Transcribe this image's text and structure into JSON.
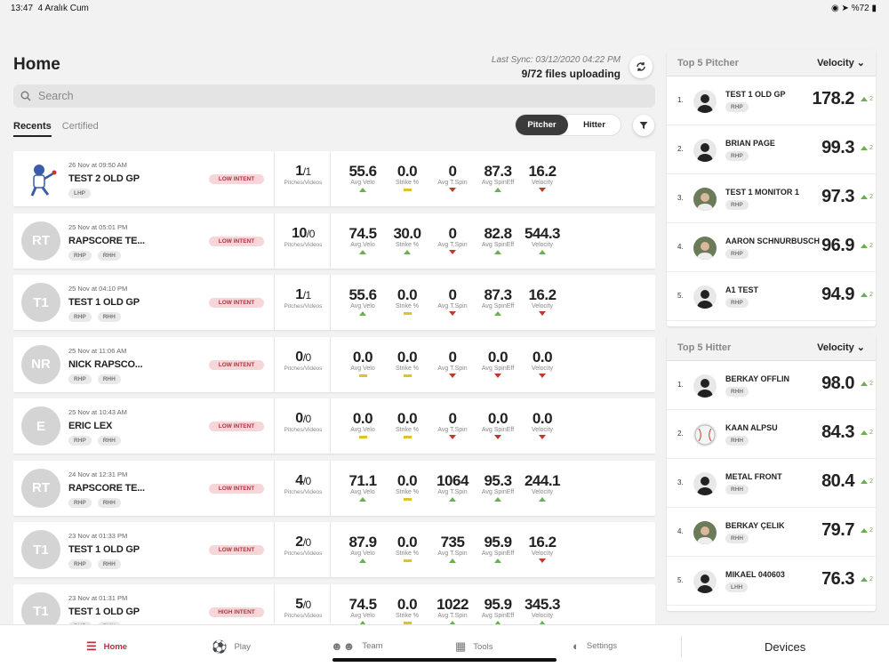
{
  "status": {
    "time": "13:47",
    "date": "4 Aralık Cum",
    "battery": "%72"
  },
  "header": {
    "title": "Home",
    "last_sync": "Last Sync: 03/12/2020 04:22 PM",
    "files": "9/72 files uploading"
  },
  "search": {
    "placeholder": "Search"
  },
  "tabs": [
    "Recents",
    "Certified"
  ],
  "segment": {
    "pitcher": "Pitcher",
    "hitter": "Hitter"
  },
  "metric_labels": [
    "Avg Velo",
    "Strike %",
    "Avg T.Spin",
    "Avg SpinEff",
    "Velocity"
  ],
  "pitches_label": "Pitches/Videos",
  "sessions": [
    {
      "date": "26 Nov at 09:50 AM",
      "name": "TEST 2 OLD GP",
      "initials": "",
      "avatar": "logo",
      "tags": [
        "LHP"
      ],
      "intent": "LOW INTENT",
      "pitches": "1",
      "videos": "/1",
      "metrics": [
        {
          "v": "55.6",
          "t": "up"
        },
        {
          "v": "0.0",
          "t": "flat"
        },
        {
          "v": "0",
          "t": "down"
        },
        {
          "v": "87.3",
          "t": "up"
        },
        {
          "v": "16.2",
          "t": "down"
        }
      ]
    },
    {
      "date": "25 Nov at 05:01 PM",
      "name": "RAPSCORE TE...",
      "initials": "RT",
      "avatar": "initials",
      "tags": [
        "RHP",
        "RHH"
      ],
      "intent": "LOW INTENT",
      "pitches": "10",
      "videos": "/0",
      "metrics": [
        {
          "v": "74.5",
          "t": "up"
        },
        {
          "v": "30.0",
          "t": "up"
        },
        {
          "v": "0",
          "t": "down"
        },
        {
          "v": "82.8",
          "t": "up"
        },
        {
          "v": "544.3",
          "t": "up"
        }
      ]
    },
    {
      "date": "25 Nov at 04:10 PM",
      "name": "TEST 1 OLD GP",
      "initials": "T1",
      "avatar": "initials",
      "tags": [
        "RHP",
        "RHH"
      ],
      "intent": "LOW INTENT",
      "pitches": "1",
      "videos": "/1",
      "metrics": [
        {
          "v": "55.6",
          "t": "up"
        },
        {
          "v": "0.0",
          "t": "flat"
        },
        {
          "v": "0",
          "t": "down"
        },
        {
          "v": "87.3",
          "t": "up"
        },
        {
          "v": "16.2",
          "t": "down"
        }
      ]
    },
    {
      "date": "25 Nov at 11:06 AM",
      "name": "NICK RAPSCO...",
      "initials": "NR",
      "avatar": "initials",
      "tags": [
        "RHP",
        "RHH"
      ],
      "intent": "LOW INTENT",
      "pitches": "0",
      "videos": "/0",
      "metrics": [
        {
          "v": "0.0",
          "t": "flat"
        },
        {
          "v": "0.0",
          "t": "flat"
        },
        {
          "v": "0",
          "t": "down"
        },
        {
          "v": "0.0",
          "t": "down"
        },
        {
          "v": "0.0",
          "t": "down"
        }
      ]
    },
    {
      "date": "25 Nov at 10:43 AM",
      "name": "ERIC LEX",
      "initials": "E",
      "avatar": "initials",
      "tags": [
        "RHP",
        "RHH"
      ],
      "intent": "LOW INTENT",
      "pitches": "0",
      "videos": "/0",
      "metrics": [
        {
          "v": "0.0",
          "t": "flat"
        },
        {
          "v": "0.0",
          "t": "flat"
        },
        {
          "v": "0",
          "t": "down"
        },
        {
          "v": "0.0",
          "t": "down"
        },
        {
          "v": "0.0",
          "t": "down"
        }
      ]
    },
    {
      "date": "24 Nov at 12:31 PM",
      "name": "RAPSCORE TE...",
      "initials": "RT",
      "avatar": "initials",
      "tags": [
        "RHP",
        "RHH"
      ],
      "intent": "LOW INTENT",
      "pitches": "4",
      "videos": "/0",
      "metrics": [
        {
          "v": "71.1",
          "t": "up"
        },
        {
          "v": "0.0",
          "t": "flat"
        },
        {
          "v": "1064",
          "t": "up"
        },
        {
          "v": "95.3",
          "t": "up"
        },
        {
          "v": "244.1",
          "t": "up"
        }
      ]
    },
    {
      "date": "23 Nov at 01:33 PM",
      "name": "TEST 1 OLD GP",
      "initials": "T1",
      "avatar": "initials",
      "tags": [
        "RHP",
        "RHH"
      ],
      "intent": "LOW INTENT",
      "pitches": "2",
      "videos": "/0",
      "metrics": [
        {
          "v": "87.9",
          "t": "up"
        },
        {
          "v": "0.0",
          "t": "flat"
        },
        {
          "v": "735",
          "t": "up"
        },
        {
          "v": "95.9",
          "t": "up"
        },
        {
          "v": "16.2",
          "t": "down"
        }
      ]
    },
    {
      "date": "23 Nov at 01:31 PM",
      "name": "TEST 1 OLD GP",
      "initials": "T1",
      "avatar": "initials",
      "tags": [
        "RHP",
        "RHH"
      ],
      "intent": "HIGH INTENT",
      "pitches": "5",
      "videos": "/0",
      "metrics": [
        {
          "v": "74.5",
          "t": "up"
        },
        {
          "v": "0.0",
          "t": "flat"
        },
        {
          "v": "1022",
          "t": "up"
        },
        {
          "v": "95.9",
          "t": "up"
        },
        {
          "v": "345.3",
          "t": "up"
        }
      ]
    }
  ],
  "top_pitcher": {
    "title": "Top 5 Pitcher",
    "sort": "Velocity",
    "items": [
      {
        "rank": "1.",
        "name": "TEST 1 OLD GP",
        "tag": "RHP",
        "value": "178.2",
        "change": "2"
      },
      {
        "rank": "2.",
        "name": "BRIAN PAGE",
        "tag": "RHP",
        "value": "99.3",
        "change": "2"
      },
      {
        "rank": "3.",
        "name": "TEST 1 MONITOR 1",
        "tag": "RHP",
        "value": "97.3",
        "change": "2"
      },
      {
        "rank": "4.",
        "name": "AARON SCHNURBUSCH",
        "tag": "RHP",
        "value": "96.9",
        "change": "2"
      },
      {
        "rank": "5.",
        "name": "A1 TEST",
        "tag": "RHP",
        "value": "94.9",
        "change": "2"
      }
    ]
  },
  "top_hitter": {
    "title": "Top 5 Hitter",
    "sort": "Velocity",
    "items": [
      {
        "rank": "1.",
        "name": "BERKAY OFFLIN",
        "tag": "RHH",
        "value": "98.0",
        "change": "2"
      },
      {
        "rank": "2.",
        "name": "KAAN ALPSU",
        "tag": "RHH",
        "value": "84.3",
        "change": "2"
      },
      {
        "rank": "3.",
        "name": "METAL FRONT",
        "tag": "RHH",
        "value": "80.4",
        "change": "2"
      },
      {
        "rank": "4.",
        "name": "BERKAY ÇELIK",
        "tag": "RHH",
        "value": "79.7",
        "change": "2"
      },
      {
        "rank": "5.",
        "name": "MIKAEL 040603",
        "tag": "LHH",
        "value": "76.3",
        "change": "2"
      }
    ]
  },
  "nav": {
    "home": "Home",
    "play": "Play",
    "team": "Team",
    "tools": "Tools",
    "settings": "Settings",
    "devices": "Devices"
  },
  "colors": {
    "accent": "#b6323e",
    "up": "#6ab04c",
    "down": "#c0392b",
    "flat": "#e1c12a"
  }
}
